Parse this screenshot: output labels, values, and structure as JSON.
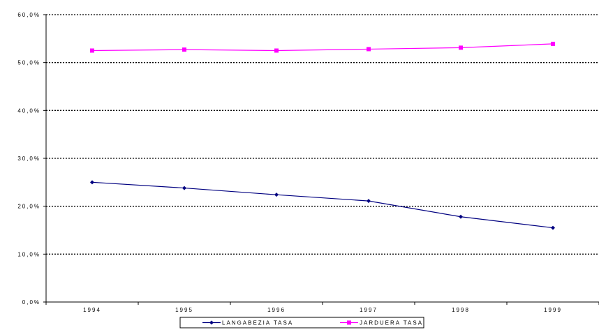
{
  "chart_data": {
    "type": "line",
    "categories": [
      "1994",
      "1995",
      "1996",
      "1997",
      "1998",
      "1999"
    ],
    "series": [
      {
        "name": "LANGABEZIA TASA",
        "values": [
          25.0,
          23.8,
          22.4,
          21.1,
          17.8,
          15.5
        ],
        "color": "#000080",
        "marker": "diamond"
      },
      {
        "name": "JARDUERA TASA",
        "values": [
          52.5,
          52.7,
          52.5,
          52.8,
          53.1,
          53.9
        ],
        "color": "#ff00ff",
        "marker": "square"
      }
    ],
    "y_ticks": [
      "0,0%",
      "10,0%",
      "20,0%",
      "30,0%",
      "40,0%",
      "50,0%",
      "60,0%"
    ],
    "ylim": [
      0,
      60
    ],
    "grid": "horizontal dotted",
    "legend": "bottom-center",
    "title": "",
    "xlabel": "",
    "ylabel": ""
  }
}
